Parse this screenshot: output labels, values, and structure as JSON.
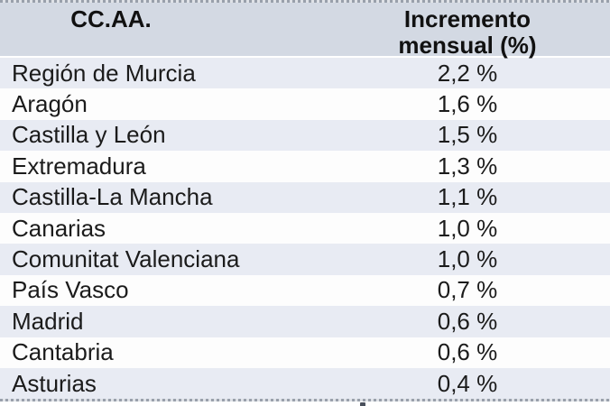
{
  "header": {
    "col1": "CC.AA.",
    "col2": "Incremento mensual (%)"
  },
  "rows": [
    {
      "name": "Región de Murcia",
      "value": "2,2 %"
    },
    {
      "name": "Aragón",
      "value": "1,6 %"
    },
    {
      "name": "Castilla y León",
      "value": "1,5 %"
    },
    {
      "name": "Extremadura",
      "value": "1,3 %"
    },
    {
      "name": "Castilla-La Mancha",
      "value": "1,1 %"
    },
    {
      "name": "Canarias",
      "value": "1,0 %"
    },
    {
      "name": "Comunitat Valenciana",
      "value": "1,0 %"
    },
    {
      "name": "País Vasco",
      "value": "0,7 %"
    },
    {
      "name": "Madrid",
      "value": "0,6 %"
    },
    {
      "name": "Cantabria",
      "value": "0,6 %"
    },
    {
      "name": "Asturias",
      "value": "0,4 %"
    }
  ],
  "colors": {
    "header_bg": "#d3d9e3",
    "stripe_row_bg": "#e8ebf3",
    "plain_row_bg": "#fdfdfd",
    "dashed_border": "#99a0ab",
    "text": "#1b1b1b"
  },
  "chart_data": {
    "type": "table",
    "title": "",
    "columns": [
      "CC.AA.",
      "Incremento mensual (%)"
    ],
    "categories": [
      "Región de Murcia",
      "Aragón",
      "Castilla y León",
      "Extremadura",
      "Castilla-La Mancha",
      "Canarias",
      "Comunitat Valenciana",
      "País Vasco",
      "Madrid",
      "Cantabria",
      "Asturias"
    ],
    "values": [
      2.2,
      1.6,
      1.5,
      1.3,
      1.1,
      1.0,
      1.0,
      0.7,
      0.6,
      0.6,
      0.4
    ],
    "value_unit": "%",
    "value_display": [
      "2,2 %",
      "1,6 %",
      "1,5 %",
      "1,3 %",
      "1,1 %",
      "1,0 %",
      "1,0 %",
      "0,7 %",
      "0,6 %",
      "0,6 %",
      "0,4 %"
    ],
    "layout_hints": {
      "striped_rows": true,
      "first_data_row_shaded": true,
      "right_edge_cropped": true
    }
  }
}
